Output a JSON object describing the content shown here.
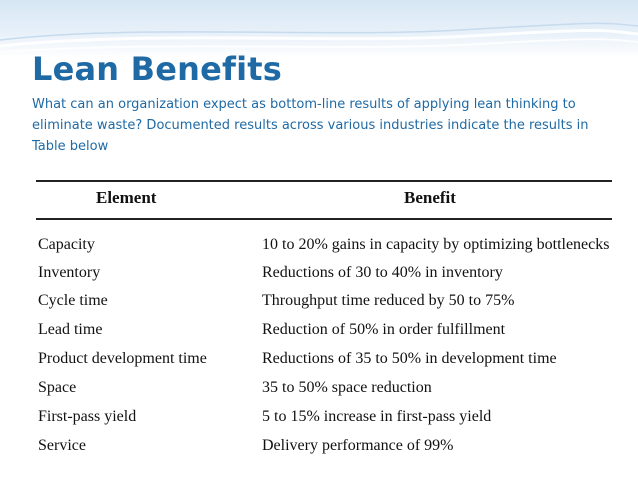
{
  "slide": {
    "title": "Lean Benefits",
    "subtitle": "What can an organization expect as bottom-line results of applying lean thinking to eliminate waste? Documented results across various industries indicate the results in Table below",
    "accent_color": "#1f6aa5",
    "header_band_color": "#d6e6f4"
  },
  "table": {
    "headers": {
      "element": "Element",
      "benefit": "Benefit"
    },
    "rows": [
      {
        "element": "Capacity",
        "benefit": "10 to 20% gains in capacity by optimizing bottlenecks"
      },
      {
        "element": "Inventory",
        "benefit": "Reductions of 30 to 40% in inventory"
      },
      {
        "element": "Cycle time",
        "benefit": "Throughput time reduced by 50 to 75%"
      },
      {
        "element": "Lead time",
        "benefit": "Reduction of 50% in order fulfillment"
      },
      {
        "element": "Product development time",
        "benefit": "Reductions of 35 to 50% in development time"
      },
      {
        "element": "Space",
        "benefit": "35 to 50% space reduction"
      },
      {
        "element": "First-pass yield",
        "benefit": "5 to 15% increase in first-pass yield"
      },
      {
        "element": "Service",
        "benefit": "Delivery performance of 99%"
      }
    ]
  }
}
